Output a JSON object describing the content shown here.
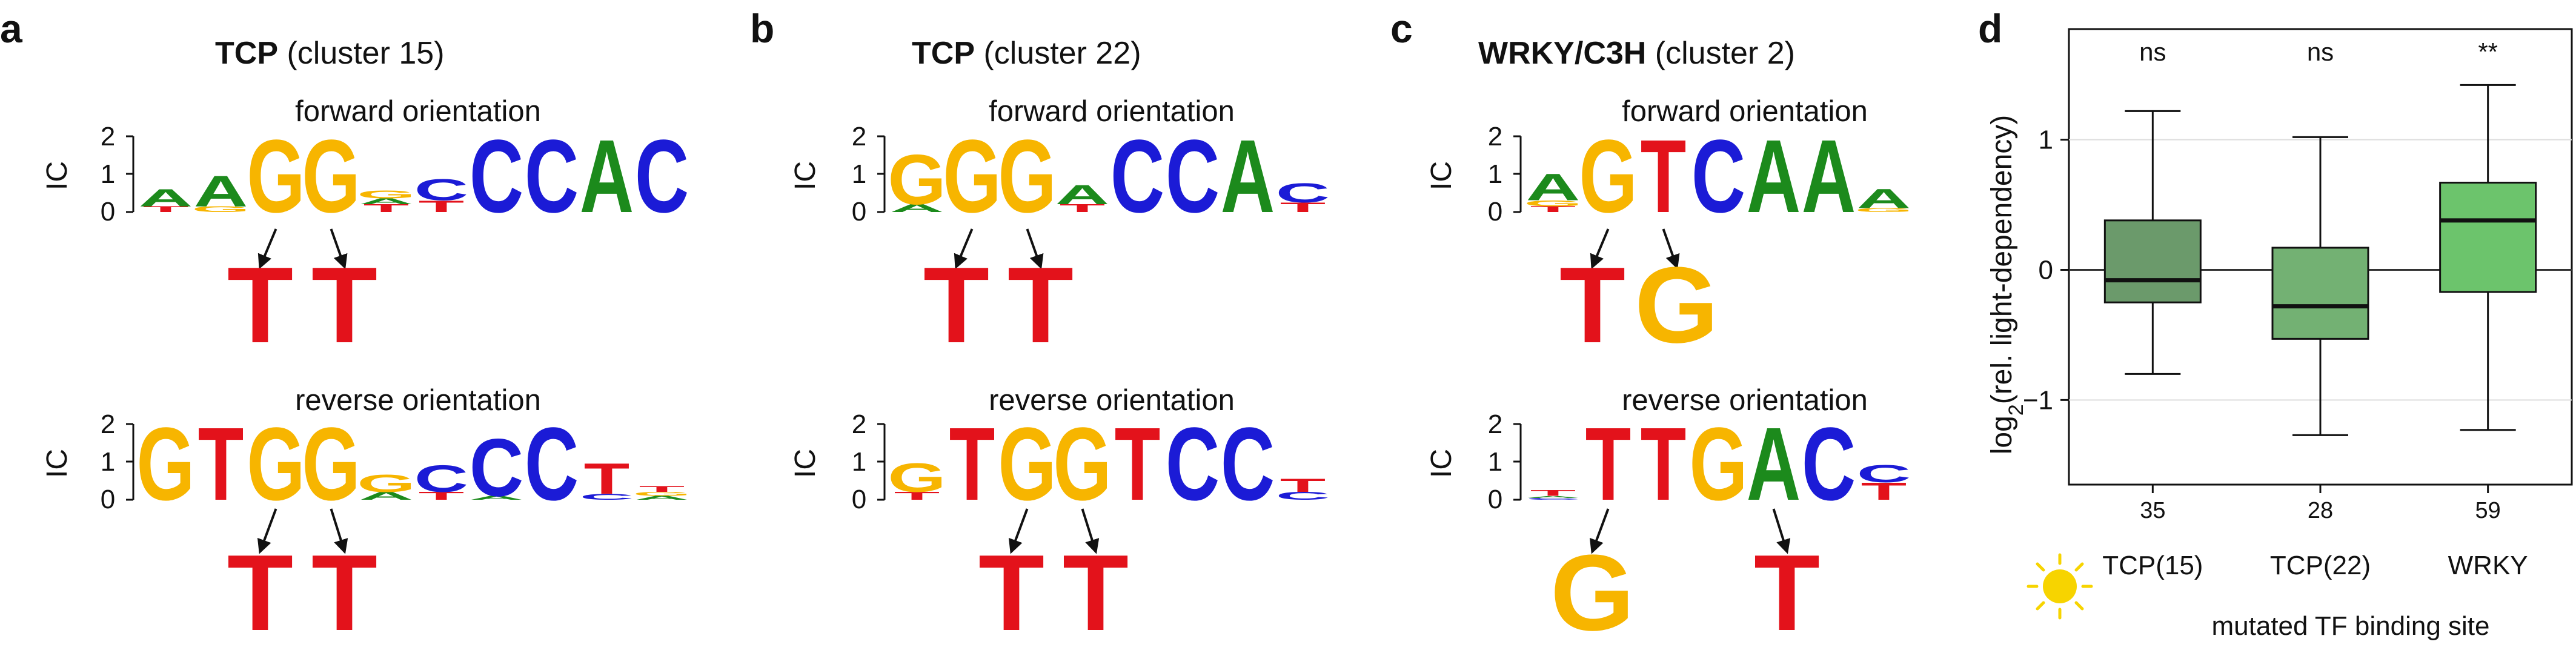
{
  "colors": {
    "A": "#1c8a1c",
    "C": "#1b1bd6",
    "G": "#f7b500",
    "T": "#e3121b"
  },
  "panels": [
    {
      "label": "a",
      "title_bold": "TCP",
      "title_rest": " (cluster 15)",
      "axis_label": "IC",
      "ticks": [
        "2",
        "1",
        "0"
      ],
      "forward": {
        "caption": "forward orientation",
        "logo": [
          [
            [
              "T",
              0.15
            ],
            [
              "A",
              0.45
            ]
          ],
          [
            [
              "G",
              0.15
            ],
            [
              "A",
              0.8
            ]
          ],
          [
            [
              "G",
              1.9
            ]
          ],
          [
            [
              "G",
              1.9
            ]
          ],
          [
            [
              "T",
              0.2
            ],
            [
              "A",
              0.15
            ],
            [
              "G",
              0.2
            ]
          ],
          [
            [
              "T",
              0.3
            ],
            [
              "C",
              0.55
            ]
          ],
          [
            [
              "C",
              1.9
            ]
          ],
          [
            [
              "C",
              1.9
            ]
          ],
          [
            [
              "A",
              1.9
            ]
          ],
          [
            [
              "C",
              1.9
            ]
          ]
        ],
        "mutations": [
          {
            "pos": 2,
            "base": "T"
          },
          {
            "pos": 3,
            "base": "T"
          }
        ]
      },
      "reverse": {
        "caption": "reverse orientation",
        "logo": [
          [
            [
              "G",
              1.9
            ]
          ],
          [
            [
              "T",
              1.9
            ]
          ],
          [
            [
              "G",
              1.9
            ]
          ],
          [
            [
              "G",
              1.9
            ]
          ],
          [
            [
              "A",
              0.2
            ],
            [
              "G",
              0.45
            ]
          ],
          [
            [
              "T",
              0.2
            ],
            [
              "C",
              0.7
            ]
          ],
          [
            [
              "A",
              0.1
            ],
            [
              "C",
              1.5
            ]
          ],
          [
            [
              "C",
              1.9
            ]
          ],
          [
            [
              "C",
              0.15
            ],
            [
              "T",
              0.8
            ]
          ],
          [
            [
              "A",
              0.1
            ],
            [
              "G",
              0.1
            ],
            [
              "T",
              0.15
            ]
          ]
        ],
        "mutations": [
          {
            "pos": 2,
            "base": "T"
          },
          {
            "pos": 3,
            "base": "T"
          }
        ]
      }
    },
    {
      "label": "b",
      "title_bold": "TCP",
      "title_rest": " (cluster 22)",
      "axis_label": "IC",
      "ticks": [
        "2",
        "1",
        "0"
      ],
      "forward": {
        "caption": "forward orientation",
        "logo": [
          [
            [
              "A",
              0.2
            ],
            [
              "G",
              1.3
            ]
          ],
          [
            [
              "G",
              1.9
            ]
          ],
          [
            [
              "G",
              1.9
            ]
          ],
          [
            [
              "T",
              0.2
            ],
            [
              "A",
              0.5
            ]
          ],
          [
            [
              "C",
              1.9
            ]
          ],
          [
            [
              "C",
              1.9
            ]
          ],
          [
            [
              "A",
              1.9
            ]
          ],
          [
            [
              "T",
              0.25
            ],
            [
              "C",
              0.5
            ]
          ]
        ],
        "mutations": [
          {
            "pos": 1,
            "base": "T"
          },
          {
            "pos": 2,
            "base": "T"
          }
        ]
      },
      "reverse": {
        "caption": "reverse orientation",
        "logo": [
          [
            [
              "T",
              0.2
            ],
            [
              "G",
              0.75
            ]
          ],
          [
            [
              "T",
              1.9
            ]
          ],
          [
            [
              "G",
              1.9
            ]
          ],
          [
            [
              "G",
              1.9
            ]
          ],
          [
            [
              "T",
              1.9
            ]
          ],
          [
            [
              "C",
              1.9
            ]
          ],
          [
            [
              "C",
              1.9
            ]
          ],
          [
            [
              "C",
              0.2
            ],
            [
              "T",
              0.35
            ]
          ]
        ],
        "mutations": [
          {
            "pos": 2,
            "base": "T"
          },
          {
            "pos": 3,
            "base": "T"
          }
        ]
      }
    },
    {
      "label": "c",
      "title_bold": "WRKY/C3H",
      "title_rest": " (cluster 2)",
      "axis_label": "IC",
      "ticks": [
        "2",
        "1",
        "0"
      ],
      "forward": {
        "caption": "forward orientation",
        "logo": [
          [
            [
              "T",
              0.15
            ],
            [
              "G",
              0.15
            ],
            [
              "A",
              0.7
            ]
          ],
          [
            [
              "G",
              1.9
            ]
          ],
          [
            [
              "T",
              1.9
            ]
          ],
          [
            [
              "C",
              1.9
            ]
          ],
          [
            [
              "A",
              1.9
            ]
          ],
          [
            [
              "A",
              1.9
            ]
          ],
          [
            [
              "G",
              0.1
            ],
            [
              "A",
              0.5
            ]
          ]
        ],
        "mutations": [
          {
            "pos": 1,
            "base": "T"
          },
          {
            "pos": 2,
            "base": "G"
          }
        ]
      },
      "reverse": {
        "caption": "reverse orientation",
        "logo": [
          [
            [
              "C",
              0.05
            ],
            [
              "A",
              0.05
            ],
            [
              "T",
              0.15
            ]
          ],
          [
            [
              "T",
              1.9
            ]
          ],
          [
            [
              "T",
              1.9
            ]
          ],
          [
            [
              "G",
              1.9
            ]
          ],
          [
            [
              "A",
              1.9
            ]
          ],
          [
            [
              "C",
              1.9
            ]
          ],
          [
            [
              "T",
              0.45
            ],
            [
              "C",
              0.45
            ]
          ]
        ],
        "mutations": [
          {
            "pos": 1,
            "base": "G"
          },
          {
            "pos": 4,
            "base": "T"
          }
        ]
      }
    }
  ],
  "panel_d": {
    "label": "d",
    "ylabel_main": "log",
    "ylabel_sub": "2",
    "ylabel_rest": "(rel. light-dependency)",
    "xlabel": "mutated TF binding site",
    "yticks": [
      "1",
      "0",
      "−1"
    ],
    "sun_icon": "sun-icon"
  },
  "chart_data": {
    "type": "box",
    "categories": [
      "TCP(15)",
      "TCP(22)",
      "WRKY"
    ],
    "ylim": [
      -1.65,
      1.85
    ],
    "yticks": [
      -1,
      0,
      1
    ],
    "grid": true,
    "boxes": [
      {
        "whisker_low": -0.8,
        "q1": -0.25,
        "median": -0.08,
        "q3": 0.38,
        "whisker_high": 1.22,
        "n": "35",
        "significance": "ns",
        "color": "#6b9a6b"
      },
      {
        "whisker_low": -1.27,
        "q1": -0.53,
        "median": -0.28,
        "q3": 0.17,
        "whisker_high": 1.02,
        "n": "28",
        "significance": "ns",
        "color": "#73b173"
      },
      {
        "whisker_low": -1.23,
        "q1": -0.17,
        "median": 0.38,
        "q3": 0.67,
        "whisker_high": 1.42,
        "n": "59",
        "significance": "**",
        "color": "#6cc46c"
      }
    ]
  }
}
